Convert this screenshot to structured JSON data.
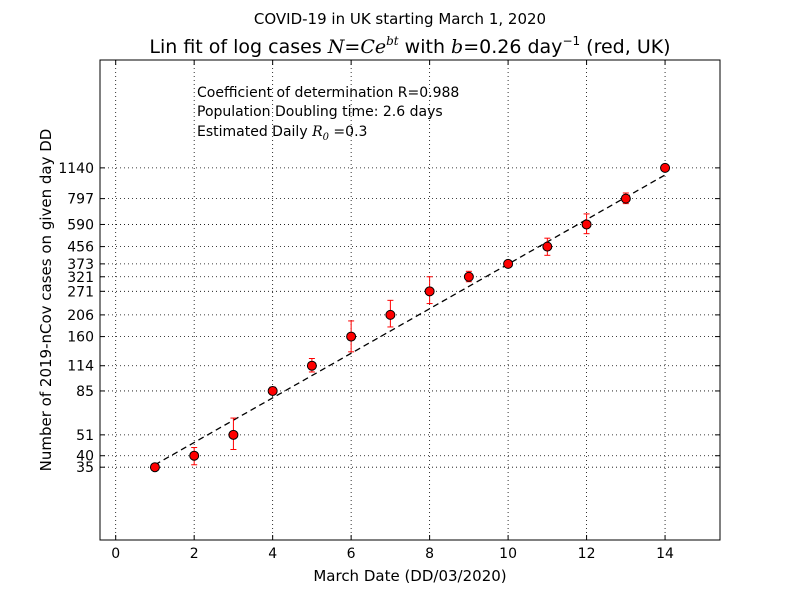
{
  "chart_data": {
    "type": "scatter",
    "suptitle": "COVID-19 in UK starting March 1, 2020",
    "title": {
      "prefix": "Lin fit of log cases ",
      "formula_n": "N",
      "formula_eq": "=",
      "formula_c": "Ce",
      "formula_exp": "bt",
      "mid": " with ",
      "b_sym": "b",
      "b_val": "=0.26",
      "unit": " day",
      "unit_exp": "−1",
      "suffix": " (red, UK)"
    },
    "xlabel": "March Date (DD/03/2020)",
    "ylabel": "Number of 2019-nCov cases on given day DD",
    "xlim": [
      -0.4,
      15.4
    ],
    "ylim": [
      15,
      4000
    ],
    "yscale": "log",
    "grid": true,
    "x_ticks": [
      0,
      2,
      4,
      6,
      8,
      10,
      12,
      14
    ],
    "y_ticks": [
      35,
      40,
      51,
      85,
      114,
      160,
      206,
      271,
      321,
      373,
      456,
      590,
      797,
      1140
    ],
    "annotations": {
      "r2": "Coefficient of determination R=0.988",
      "doubling": "Population Doubling time: 2.6 days",
      "r0_prefix": "Estimated Daily ",
      "r0_sym": "R",
      "r0_sub": "0",
      "r0_val": " =0.3"
    },
    "series": [
      {
        "color": "#ff0000",
        "marker": "circle",
        "x": [
          1,
          2,
          3,
          4,
          5,
          6,
          7,
          8,
          9,
          10,
          11,
          12,
          13,
          14
        ],
        "y": [
          35,
          40,
          51,
          85,
          114,
          160,
          206,
          271,
          321,
          373,
          456,
          590,
          797,
          1140
        ],
        "err_lo": [
          1,
          4,
          8,
          3,
          8,
          26,
          27,
          36,
          18,
          6,
          44,
          60,
          45,
          28
        ],
        "err_hi": [
          1,
          4,
          11,
          4,
          10,
          32,
          38,
          50,
          21,
          8,
          47,
          77,
          54,
          30
        ]
      }
    ],
    "fit": {
      "type": "exponential",
      "color": "#000000",
      "style": "dashed",
      "x": [
        1,
        14
      ],
      "y": [
        36,
        1050
      ]
    }
  }
}
